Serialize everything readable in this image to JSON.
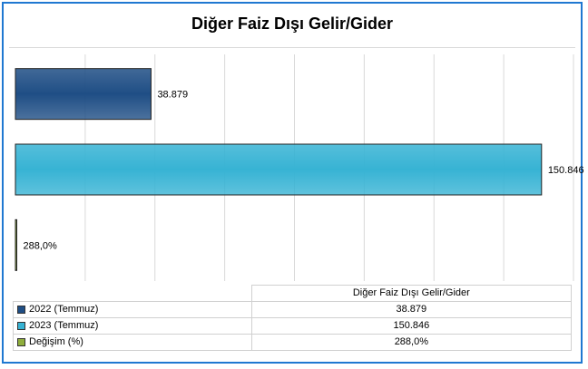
{
  "chart_data": {
    "type": "bar",
    "orientation": "horizontal",
    "title": "Diğer Faiz Dışı Gelir/Gider",
    "category": "Diğer Faiz Dışı Gelir/Gider",
    "series": [
      {
        "name": "2022 (Temmuz)",
        "value": 38879,
        "label": "38.879",
        "color": "#1f4e85"
      },
      {
        "name": "2023 (Temmuz)",
        "value": 150846,
        "label": "150.846",
        "color": "#37b3d4"
      },
      {
        "name": "Değişim (%)",
        "value": 288,
        "label": "288,0%",
        "color": "#8fae3c"
      }
    ],
    "xlim": [
      0,
      160000
    ],
    "grid": true,
    "legend": "data-table"
  }
}
